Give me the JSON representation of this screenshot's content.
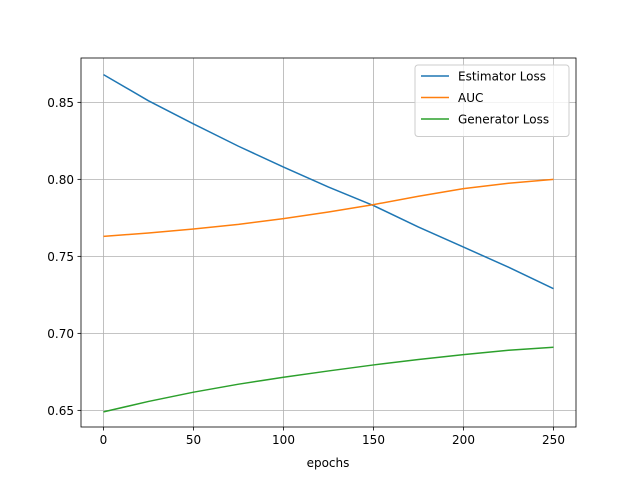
{
  "chart_data": {
    "type": "line",
    "xlabel": "epochs",
    "ylabel": "",
    "title": "",
    "xlim": [
      -12.5,
      262.5
    ],
    "ylim": [
      0.6392,
      0.8788
    ],
    "xticks": [
      0,
      50,
      100,
      150,
      200,
      250
    ],
    "xtick_labels": [
      "0",
      "50",
      "100",
      "150",
      "200",
      "250"
    ],
    "yticks": [
      0.65,
      0.7,
      0.75,
      0.8,
      0.85
    ],
    "ytick_labels": [
      "0.65",
      "0.70",
      "0.75",
      "0.80",
      "0.85"
    ],
    "grid": true,
    "legend_position": "upper-right",
    "x": [
      0,
      25,
      50,
      75,
      100,
      125,
      150,
      175,
      200,
      225,
      250
    ],
    "series": [
      {
        "name": "Estimator Loss",
        "color": "#1f77b4",
        "values": [
          0.868,
          0.851,
          0.836,
          0.8215,
          0.808,
          0.795,
          0.783,
          0.769,
          0.756,
          0.743,
          0.729
        ]
      },
      {
        "name": "AUC",
        "color": "#ff7f0e",
        "values": [
          0.763,
          0.7652,
          0.7678,
          0.7708,
          0.7745,
          0.7788,
          0.7836,
          0.789,
          0.794,
          0.7975,
          0.8
        ]
      },
      {
        "name": "Generator Loss",
        "color": "#2ca02c",
        "values": [
          0.649,
          0.6558,
          0.6618,
          0.667,
          0.6715,
          0.6756,
          0.6795,
          0.683,
          0.6862,
          0.689,
          0.691
        ]
      }
    ]
  }
}
